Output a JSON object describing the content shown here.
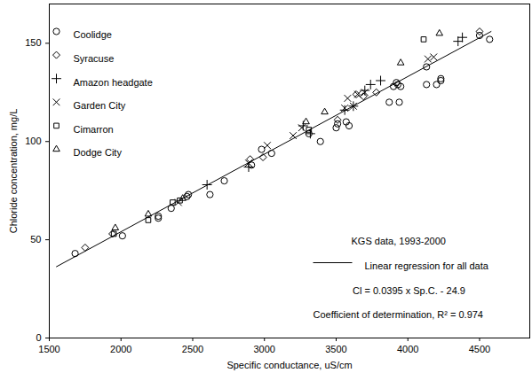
{
  "chart_data": {
    "type": "scatter",
    "xlabel": "Specific conductance, uS/cm",
    "ylabel": "Chloride concentration, mg/L",
    "xlim": [
      1500,
      4850
    ],
    "xticks": [
      1500,
      2000,
      2500,
      3000,
      3500,
      4000,
      4500
    ],
    "ylim": [
      0,
      170
    ],
    "yticks": [
      0,
      50,
      100,
      150
    ],
    "grid": false,
    "legend": "top-left",
    "annotations": [
      "KGS data, 1993-2000",
      "Cl = 0.0395 x Sp.C. - 24.9",
      "Coefficient of determination, R² = 0.974"
    ],
    "series": [
      {
        "name": "Coolidge",
        "type": "scatter",
        "marker": "circle",
        "color": "#000000",
        "x": [
          1680,
          2010,
          2260,
          2260,
          2350,
          2460,
          2470,
          2620,
          2720,
          2910,
          2980,
          3050,
          3310,
          3390,
          3500,
          3510,
          3570,
          3590,
          3870,
          3900,
          3920,
          3930,
          3940,
          3950,
          4130,
          4130,
          4200,
          4230,
          4230,
          4500,
          4570
        ],
        "values": [
          43,
          52,
          61,
          62,
          66,
          72,
          73,
          73,
          80,
          88,
          96,
          94,
          104,
          100,
          107,
          109,
          110,
          108,
          120,
          128,
          130,
          129,
          120,
          128,
          129,
          138,
          129,
          131,
          132,
          154,
          152
        ]
      },
      {
        "name": "Syracuse",
        "type": "scatter",
        "marker": "diamond",
        "color": "#000000",
        "x": [
          1750,
          1940,
          2900,
          2990,
          3510,
          3640,
          3690,
          3780,
          4500
        ],
        "values": [
          46,
          53,
          91,
          92,
          111,
          124,
          123,
          125,
          156
        ]
      },
      {
        "name": "Amazon headgate",
        "type": "scatter",
        "marker": "plus",
        "color": "#000000",
        "x": [
          2600,
          2890,
          3270,
          3320,
          3560,
          3620,
          3700,
          3740,
          3810,
          4350,
          4380
        ],
        "values": [
          78,
          87,
          108,
          104,
          116,
          118,
          126,
          129,
          131,
          151,
          153
        ]
      },
      {
        "name": "Garden City",
        "type": "scatter",
        "marker": "times",
        "color": "#000000",
        "x": [
          2400,
          2890,
          3020,
          3200,
          3260,
          3560,
          3580,
          3620,
          3650,
          3700,
          4140,
          4180
        ],
        "values": [
          69,
          89,
          98,
          103,
          107,
          117,
          122,
          118,
          124,
          125,
          142,
          143
        ]
      },
      {
        "name": "Cimarron",
        "type": "scatter",
        "marker": "square",
        "color": "#000000",
        "x": [
          1950,
          2190,
          2360,
          2410,
          3310,
          4110
        ],
        "values": [
          53,
          60,
          69,
          70,
          106,
          152
        ]
      },
      {
        "name": "Dodge City",
        "type": "scatter",
        "marker": "triangle",
        "color": "#000000",
        "x": [
          1960,
          2190,
          2430,
          3290,
          3420,
          3950,
          4220
        ],
        "values": [
          56,
          63,
          71,
          110,
          115,
          140,
          155
        ]
      },
      {
        "name": "Linear regression for all data",
        "type": "line",
        "line_style": "solid",
        "color": "#000000",
        "x": [
          1550,
          4580
        ],
        "values": [
          36.3,
          156.0
        ]
      }
    ]
  }
}
